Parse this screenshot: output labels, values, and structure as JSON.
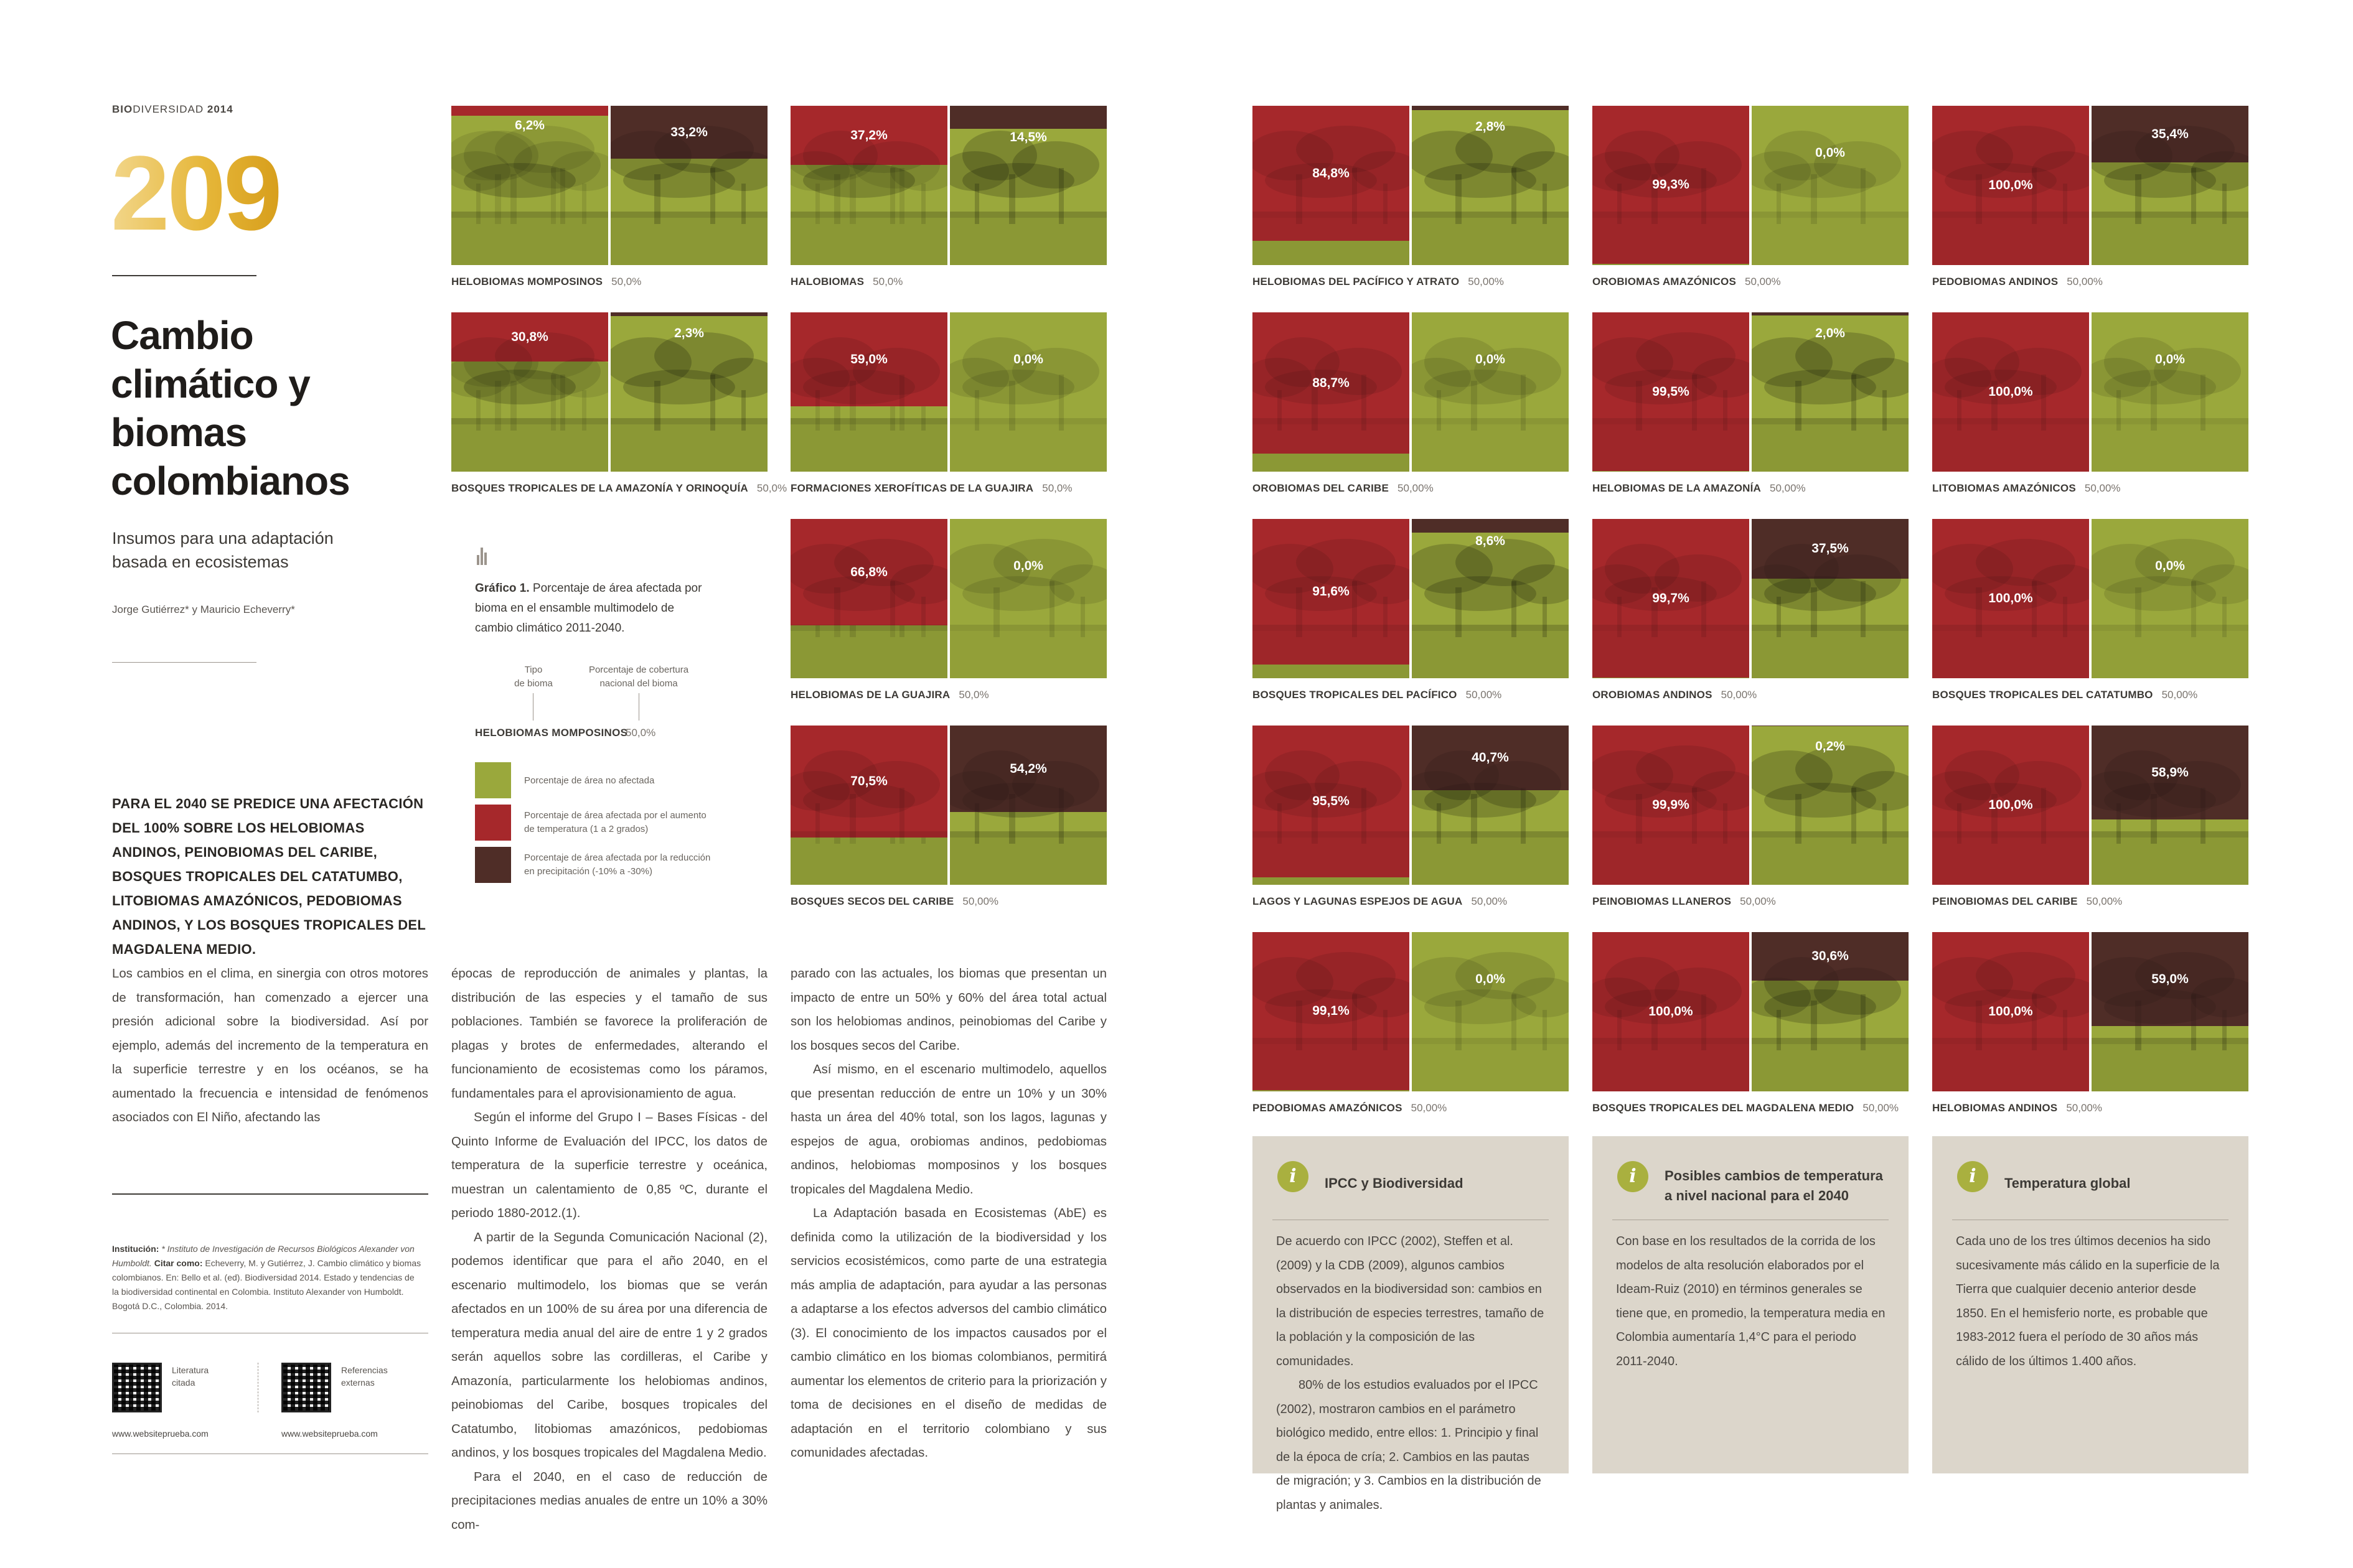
{
  "header": {
    "brand_bold": "BIO",
    "brand_rest": "DIVERSIDAD",
    "year": "2014"
  },
  "page_number": "209",
  "title": "Cambio climático y biomas colombianos",
  "subtitle": "Insumos para una adaptación basada en ecosistemas",
  "authors": "Jorge Gutiérrez* y Mauricio Echeverry*",
  "lead": "Para el 2040 se predice una afectación del 100% sobre los helobiomas andinos, peinobiomas del Caribe, bosques tropicales del Catatumbo, litobiomas amazónicos, pedobiomas andinos, y los bosques tropicales del Magdalena Medio.",
  "body": {
    "col1": [
      "Los cambios en el clima, en sinergia con otros motores de transformación, han comenzado a ejercer una presión adicional sobre la biodiversidad. Así por ejemplo, además del incremento de la temperatura en la superficie terrestre y en los océanos, se ha aumentado la frecuencia e intensidad de fenómenos asociados con El Niño, afectando las"
    ],
    "col2": [
      "épocas de reproducción de animales y plantas, la distribución de las especies y el tamaño de sus poblaciones. También se favorece la proliferación de plagas y brotes de enfermedades, alterando el funcionamiento de ecosistemas como los páramos, fundamentales para el aprovisionamiento de agua.",
      "Según el informe del Grupo I – Bases Físicas - del Quinto Informe de Evaluación del IPCC, los datos de temperatura de la superficie terrestre y oceánica, muestran un calentamiento de 0,85 ºC, durante el periodo 1880-2012.(1).",
      "A partir de la Segunda Comunicación Nacional (2), podemos identificar que para el año 2040, en el escenario multimodelo, los biomas que se verán afectados en un 100% de su área por una diferencia de temperatura media anual del aire de entre 1 y 2 grados serán aquellos sobre las cordilleras, el Caribe y Amazonía, particularmente los helobiomas andinos, peinobiomas del Caribe, bosques tropicales del Catatumbo, litobiomas amazónicos, pedobiomas andinos, y los bosques tropicales del Magdalena Medio.",
      "Para el 2040, en el caso de reducción de precipitaciones medias anuales de entre un 10% a 30% com-"
    ],
    "col3": [
      "parado con las actuales, los biomas que presentan un impacto de entre un 50% y 60% del área total actual son los helobiomas andinos, peinobiomas del Caribe y los bosques secos del Caribe.",
      "Así mismo, en el escenario multimodelo, aquellos que presentan reducción de entre un 10% y un 30% hasta un área del 40% total, son los lagos, lagunas y espejos de agua, orobiomas andinos, pedobiomas andinos, helobiomas mompo­sinos y los bosques tropicales del Magdalena Medio.",
      "La Adaptación basada en Ecosistemas (AbE) es definida como la utilización de la biodiversidad y los servicios ecosistémicos, como parte de una estrategia más amplia de adaptación, para ayudar a las personas a adaptarse a los efectos adversos del cambio climático (3). El conocimiento de los impactos causados por el cambio climático en los biomas colombianos, permitirá aumentar los elementos de criterio para la priorización y toma de decisiones en el diseño de medidas de adaptación en el territorio colombiano y sus comunidades afectadas."
    ]
  },
  "notes": {
    "institucion_label": "Institución:",
    "institucion": " * Instituto de Investigación de Recursos Biológicos Alexander von Humboldt.",
    "citar_label": "Citar como:",
    "citar": " Echeverry, M. y Gutiérrez, J. Cambio climático y biomas colombianos. En: Bello et al. (ed). Biodiversidad 2014. Estado y tendencias de la biodiversidad continental en Colombia. Instituto Alexander von Humboldt. Bogotá D.C., Colombia. 2014."
  },
  "links": [
    {
      "label_1": "Literatura",
      "label_2": "citada",
      "url": "www.websiteprueba.com"
    },
    {
      "label_1": "Referencias",
      "label_2": "externas",
      "url": "www.websiteprueba.com"
    }
  ],
  "legend": {
    "caption_bold": "Gráfico 1.",
    "caption": " Porcentaje de área afectada por bioma en el ensamble multimodelo de cambio climático 2011-2040.",
    "tipo_1": "Tipo",
    "tipo_2": "de bioma",
    "cob_1": "Porcentaje de cobertura",
    "cob_2": "nacional del bioma",
    "example_name": "HELOBIOMAS MOMPOSINOS",
    "example_pct": "50,0%",
    "items": [
      {
        "color": "#9aa83c",
        "text_1": "Porcentaje de área no afectada",
        "text_2": ""
      },
      {
        "color": "#a6282b",
        "text_1": "Porcentaje de área afectada por el aumento",
        "text_2": "de temperatura (1 a 2 grados)"
      },
      {
        "color": "#4f2d27",
        "text_1": "Porcentaje de área afectada por la reducción",
        "text_2": "en precipitación (-10% a -30%)"
      }
    ]
  },
  "colors": {
    "unaffected": "#9aa83c",
    "temperature": "#a6282b",
    "precipitation": "#4f2d27",
    "gold": "#e6b73a"
  },
  "biomes": [
    {
      "name": "HELOBIOMAS MOMPOSINOS",
      "coverage": "50,0%",
      "temp": 6.2,
      "temp_label": "6,2%",
      "prec": 33.2,
      "prec_label": "33,2%"
    },
    {
      "name": "HALOBIOMAS",
      "coverage": "50,0%",
      "temp": 37.2,
      "temp_label": "37,2%",
      "prec": 14.5,
      "prec_label": "14,5%"
    },
    {
      "name": "BOSQUES TROPICALES DE LA AMAZONÍA Y ORINOQUÍA",
      "coverage": "50,0%",
      "temp": 30.8,
      "temp_label": "30,8%",
      "prec": 2.3,
      "prec_label": "2,3%"
    },
    {
      "name": "FORMACIONES XEROFÍTICAS DE LA GUAJIRA",
      "coverage": "50,0%",
      "temp": 59.0,
      "temp_label": "59,0%",
      "prec": 0.0,
      "prec_label": "0,0%"
    },
    {
      "name": "HELOBIOMAS DE LA GUAJIRA",
      "coverage": "50,0%",
      "temp": 66.8,
      "temp_label": "66,8%",
      "prec": 0.0,
      "prec_label": "0,0%"
    },
    {
      "name": "BOSQUES SECOS DEL CARIBE",
      "coverage": "50,00%",
      "temp": 70.5,
      "temp_label": "70,5%",
      "prec": 54.2,
      "prec_label": "54,2%"
    },
    {
      "name": "HELOBIOMAS DEL PACÍFICO Y ATRATO",
      "coverage": "50,00%",
      "temp": 84.8,
      "temp_label": "84,8%",
      "prec": 2.8,
      "prec_label": "2,8%"
    },
    {
      "name": "OROBIOMAS AMAZÓNICOS",
      "coverage": "50,00%",
      "temp": 99.3,
      "temp_label": "99,3%",
      "prec": 0.0,
      "prec_label": "0,0%"
    },
    {
      "name": "PEDOBIOMAS ANDINOS",
      "coverage": "50,00%",
      "temp": 100.0,
      "temp_label": "100,0%",
      "prec": 35.4,
      "prec_label": "35,4%"
    },
    {
      "name": "OROBIOMAS DEL CARIBE",
      "coverage": "50,00%",
      "temp": 88.7,
      "temp_label": "88,7%",
      "prec": 0.0,
      "prec_label": "0,0%"
    },
    {
      "name": "HELOBIOMAS DE LA AMAZONÍA",
      "coverage": "50,00%",
      "temp": 99.5,
      "temp_label": "99,5%",
      "prec": 2.0,
      "prec_label": "2,0%"
    },
    {
      "name": "LITOBIOMAS AMAZÓNICOS",
      "coverage": "50,00%",
      "temp": 100.0,
      "temp_label": "100,0%",
      "prec": 0.0,
      "prec_label": "0,0%"
    },
    {
      "name": "BOSQUES TROPICALES DEL PACÍFICO",
      "coverage": "50,00%",
      "temp": 91.6,
      "temp_label": "91,6%",
      "prec": 8.6,
      "prec_label": "8,6%"
    },
    {
      "name": "OROBIOMAS ANDINOS",
      "coverage": "50,00%",
      "temp": 99.7,
      "temp_label": "99,7%",
      "prec": 37.5,
      "prec_label": "37,5%"
    },
    {
      "name": "BOSQUES TROPICALES DEL CATATUMBO",
      "coverage": "50,00%",
      "temp": 100.0,
      "temp_label": "100,0%",
      "prec": 0.0,
      "prec_label": "0,0%"
    },
    {
      "name": "LAGOS Y LAGUNAS ESPEJOS DE AGUA",
      "coverage": "50,00%",
      "temp": 95.5,
      "temp_label": "95,5%",
      "prec": 40.7,
      "prec_label": "40,7%"
    },
    {
      "name": "PEINOBIOMAS LLANEROS",
      "coverage": "50,00%",
      "temp": 99.9,
      "temp_label": "99,9%",
      "prec": 0.2,
      "prec_label": "0,2%"
    },
    {
      "name": "PEINOBIOMAS DEL CARIBE",
      "coverage": "50,00%",
      "temp": 100.0,
      "temp_label": "100,0%",
      "prec": 58.9,
      "prec_label": "58,9%"
    },
    {
      "name": "PEDOBIOMAS AMAZÓNICOS",
      "coverage": "50,00%",
      "temp": 99.1,
      "temp_label": "99,1%",
      "prec": 0.0,
      "prec_label": "0,0%"
    },
    {
      "name": "BOSQUES TROPICALES DEL MAGDALENA MEDIO",
      "coverage": "50,00%",
      "temp": 100.0,
      "temp_label": "100,0%",
      "prec": 30.6,
      "prec_label": "30,6%"
    },
    {
      "name": "HELOBIOMAS ANDINOS",
      "coverage": "50,00%",
      "temp": 100.0,
      "temp_label": "100,0%",
      "prec": 59.0,
      "prec_label": "59,0%"
    }
  ],
  "info_boxes": [
    {
      "icon": "info-icon",
      "title": "IPCC y Biodiversidad",
      "paragraphs": [
        "De acuerdo con IPCC (2002), Steffen et al. (2009) y la CDB (2009), algunos cambios observados en la biodiversidad son: cambios en la distribución de especies terrestres, tamaño de la población y la composición de las comunidades.",
        "80% de los estudios evaluados por el IPCC (2002), mostraron cambios en el parámetro biológico medido, entre ellos: 1. Principio y final de la época de cría; 2. Cambios en las pautas de migración; y 3. Cambios en la distribución de plantas y animales."
      ]
    },
    {
      "icon": "info-icon",
      "title": "Posibles cambios de temperatura a nivel nacional para el 2040",
      "paragraphs": [
        "Con base en los resultados de la corrida de los modelos de alta resolución elaborados por el Ideam-Ruiz (2010) en términos generales se tiene que, en promedio, la temperatura media en Colombia aumentaría 1,4°C para el periodo 2011-2040."
      ]
    },
    {
      "icon": "info-icon",
      "title": "Temperatura global",
      "paragraphs": [
        "Cada uno de los tres últimos decenios ha sido sucesivamente más cálido en la superficie de la Tierra que cualquier decenio anterior desde 1850. En el hemisferio norte, es probable que 1983-2012 fuera el período de 30 años más cálido de los últimos 1.400 años."
      ]
    }
  ]
}
